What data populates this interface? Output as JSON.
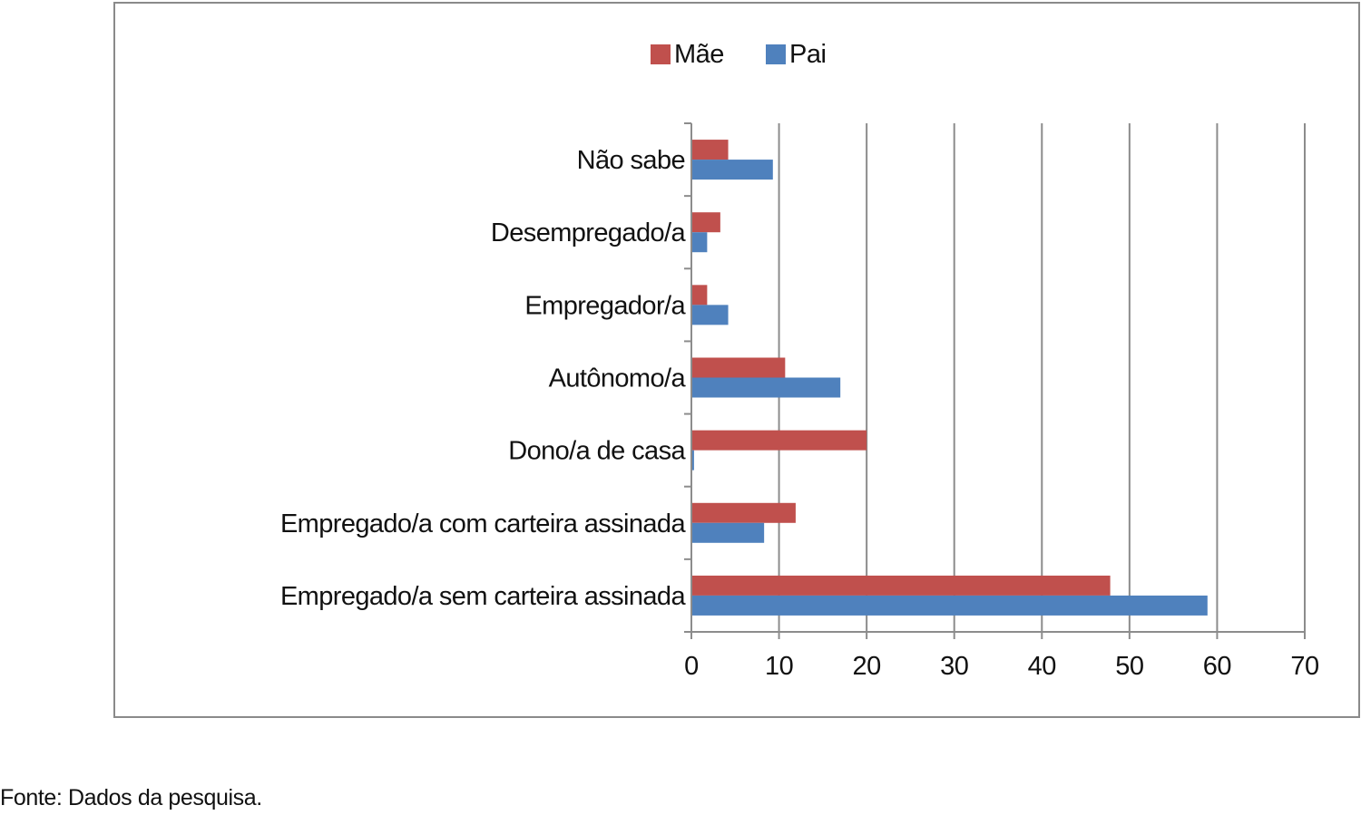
{
  "chart_data": {
    "type": "bar",
    "orientation": "horizontal",
    "categories": [
      "Não sabe",
      "Desempregado/a",
      "Empregador/a",
      "Autônomo/a",
      "Dono/a de casa",
      "Empregado/a com carteira assinada",
      "Empregado/a sem carteira assinada"
    ],
    "series": [
      {
        "name": "Mãe",
        "color": "#c0504d",
        "values": [
          4.2,
          3.3,
          1.8,
          10.7,
          20,
          11.9,
          47.8
        ]
      },
      {
        "name": "Pai",
        "color": "#4f81bd",
        "values": [
          9.3,
          1.8,
          4.2,
          17,
          0.3,
          8.3,
          58.9
        ]
      }
    ],
    "xlim": [
      0,
      70
    ],
    "xticks": [
      0,
      10,
      20,
      30,
      40,
      50,
      60,
      70
    ],
    "title": "",
    "xlabel": "",
    "ylabel": "",
    "grid": "vertical",
    "legend": "top-center"
  },
  "source_note": "Fonte: Dados da pesquisa."
}
